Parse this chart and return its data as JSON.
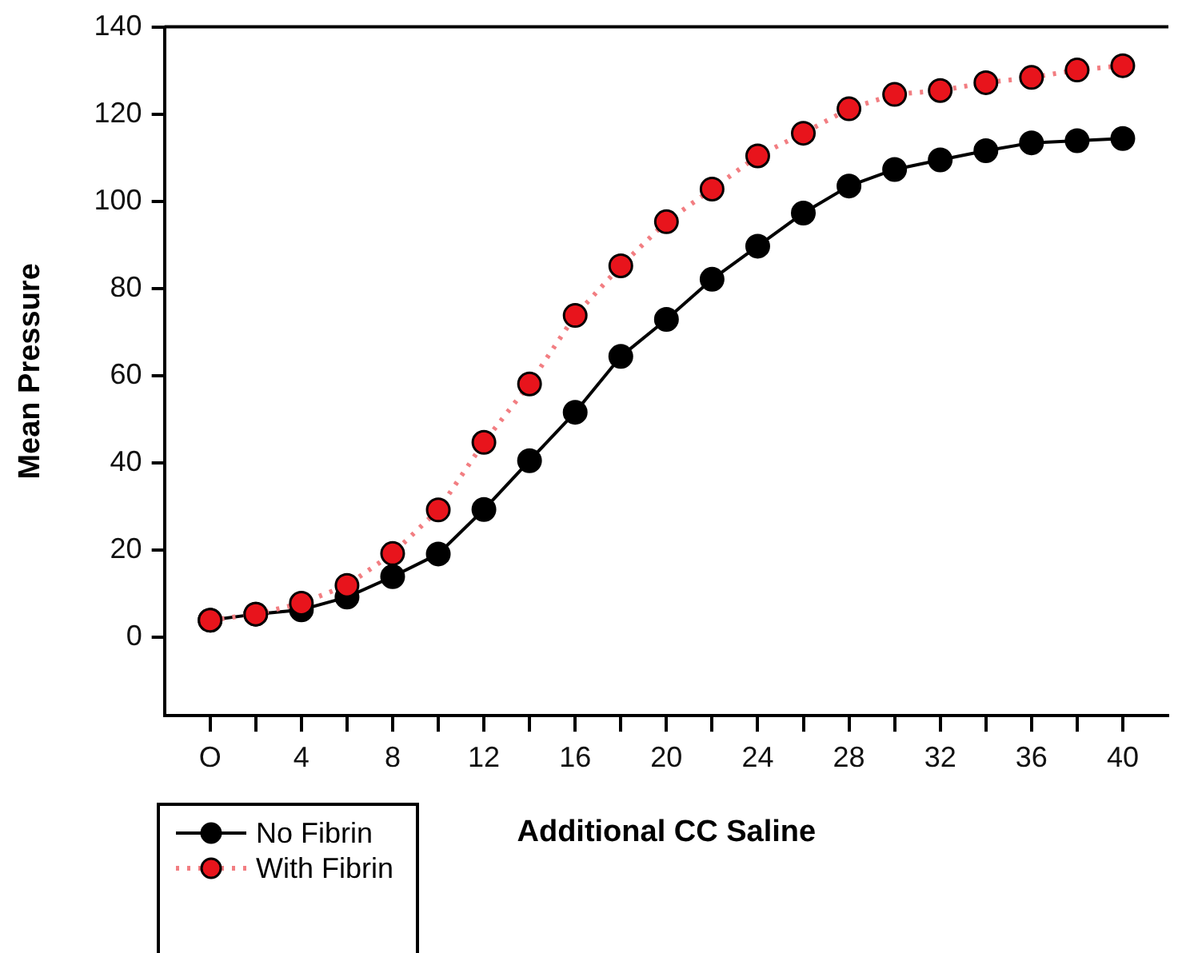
{
  "chart_data": {
    "type": "line",
    "xlabel": "Additional CC Saline",
    "ylabel": "Mean Pressure",
    "x": [
      0,
      2,
      4,
      6,
      8,
      10,
      12,
      14,
      16,
      18,
      20,
      22,
      24,
      26,
      28,
      30,
      32,
      34,
      36,
      38,
      40
    ],
    "series": [
      {
        "name": "No Fibrin",
        "color": "#000000",
        "line_style": "solid",
        "values": [
          3.9,
          5.3,
          6.3,
          9.2,
          13.9,
          19.1,
          29.3,
          40.5,
          51.6,
          64.4,
          72.9,
          82.1,
          89.7,
          97.3,
          103.5,
          107.3,
          109.5,
          111.6,
          113.4,
          113.9,
          114.4
        ]
      },
      {
        "name": "With Fibrin",
        "color": "#e8141c",
        "line_style": "dotted",
        "values": [
          3.9,
          5.3,
          7.8,
          11.9,
          19.2,
          29.2,
          44.7,
          58.1,
          73.8,
          85.2,
          95.3,
          102.8,
          110.4,
          115.6,
          121.2,
          124.5,
          125.4,
          127.2,
          128.4,
          130.1,
          131.1
        ]
      }
    ],
    "xlim": [
      -2,
      42
    ],
    "xticks": [
      {
        "value": 0,
        "label": "O"
      },
      {
        "value": 2,
        "label": null
      },
      4,
      {
        "value": 6,
        "label": null
      },
      8,
      {
        "value": 10,
        "label": null
      },
      12,
      {
        "value": 14,
        "label": null
      },
      16,
      {
        "value": 18,
        "label": null
      },
      20,
      {
        "value": 22,
        "label": null
      },
      24,
      {
        "value": 26,
        "label": null
      },
      28,
      {
        "value": 30,
        "label": null
      },
      32,
      {
        "value": 34,
        "label": null
      },
      36,
      {
        "value": 38,
        "label": null
      },
      40
    ],
    "ylim": [
      -18,
      140
    ],
    "yticks": [
      0,
      20,
      40,
      60,
      80,
      100,
      120,
      140
    ],
    "marker": "circle",
    "grid": false,
    "legend": "bottom left"
  }
}
